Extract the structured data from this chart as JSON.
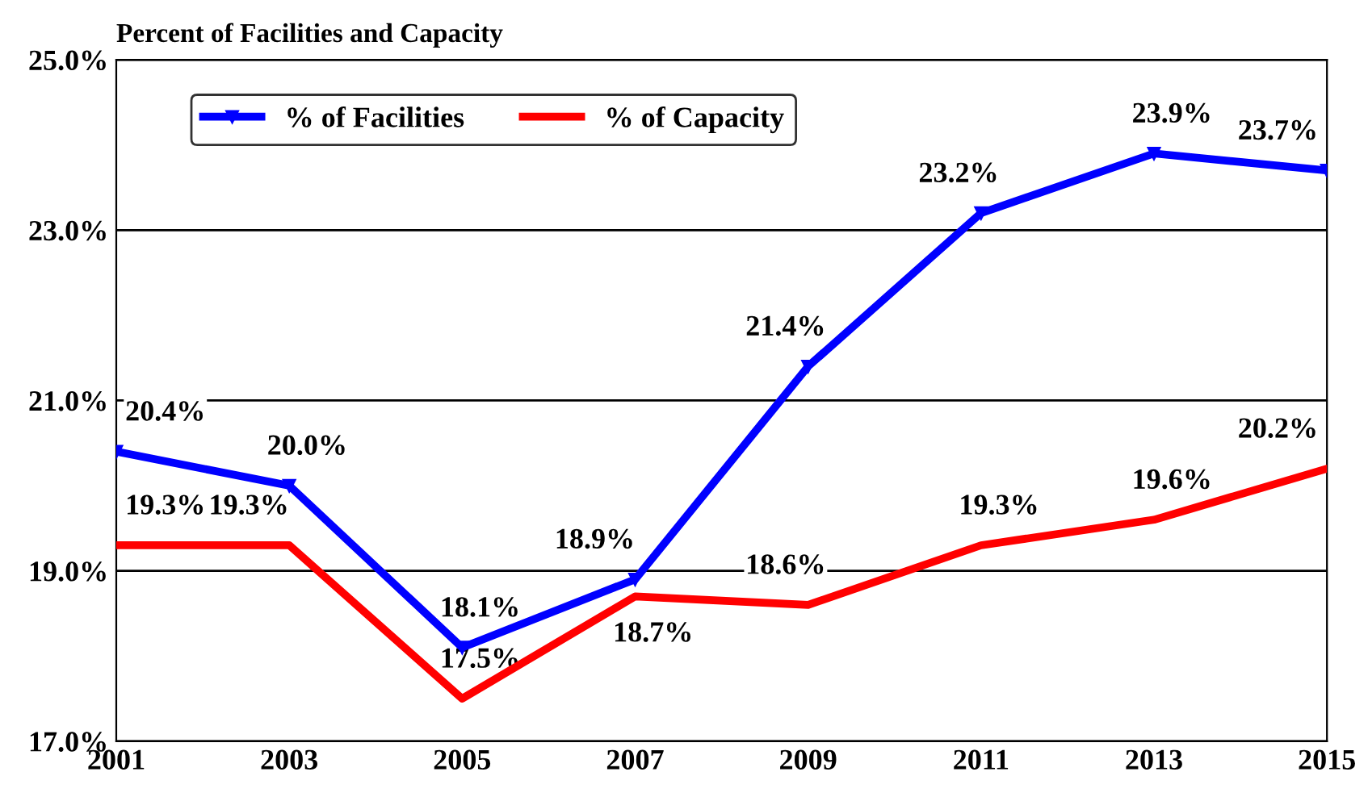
{
  "chart_data": {
    "type": "line",
    "title": "Percent of Facilities and Capacity",
    "x": [
      2001,
      2003,
      2005,
      2007,
      2009,
      2011,
      2013,
      2015
    ],
    "xlim": [
      2001,
      2015
    ],
    "xticks": [
      2001,
      2003,
      2005,
      2007,
      2009,
      2011,
      2013,
      2015
    ],
    "ylim": [
      17,
      25
    ],
    "yticks": [
      {
        "value": 17,
        "label": "17.0%"
      },
      {
        "value": 19,
        "label": "19.0%"
      },
      {
        "value": 21,
        "label": "21.0%"
      },
      {
        "value": 23,
        "label": "23.0%"
      },
      {
        "value": 25,
        "label": "25.0%"
      }
    ],
    "grid": "y",
    "legend": "top left",
    "series": [
      {
        "name": "% of Facilities",
        "color": "#0000ff",
        "marker": "triangle",
        "values": [
          20.4,
          20.0,
          18.1,
          18.9,
          21.4,
          23.2,
          23.9,
          23.7
        ],
        "value_labels": [
          "20.4%",
          "20.0%",
          "18.1%",
          "18.9%",
          "21.4%",
          "23.2%",
          "23.9%",
          "23.7%"
        ]
      },
      {
        "name": "% of Capacity",
        "color": "#ff0000",
        "values": [
          19.3,
          19.3,
          17.5,
          18.7,
          18.6,
          19.3,
          19.6,
          20.2
        ],
        "value_labels": [
          "19.3%",
          "19.3%",
          "17.5%",
          "18.7%",
          "18.6%",
          "19.3%",
          "19.6%",
          "20.2%"
        ]
      }
    ]
  }
}
